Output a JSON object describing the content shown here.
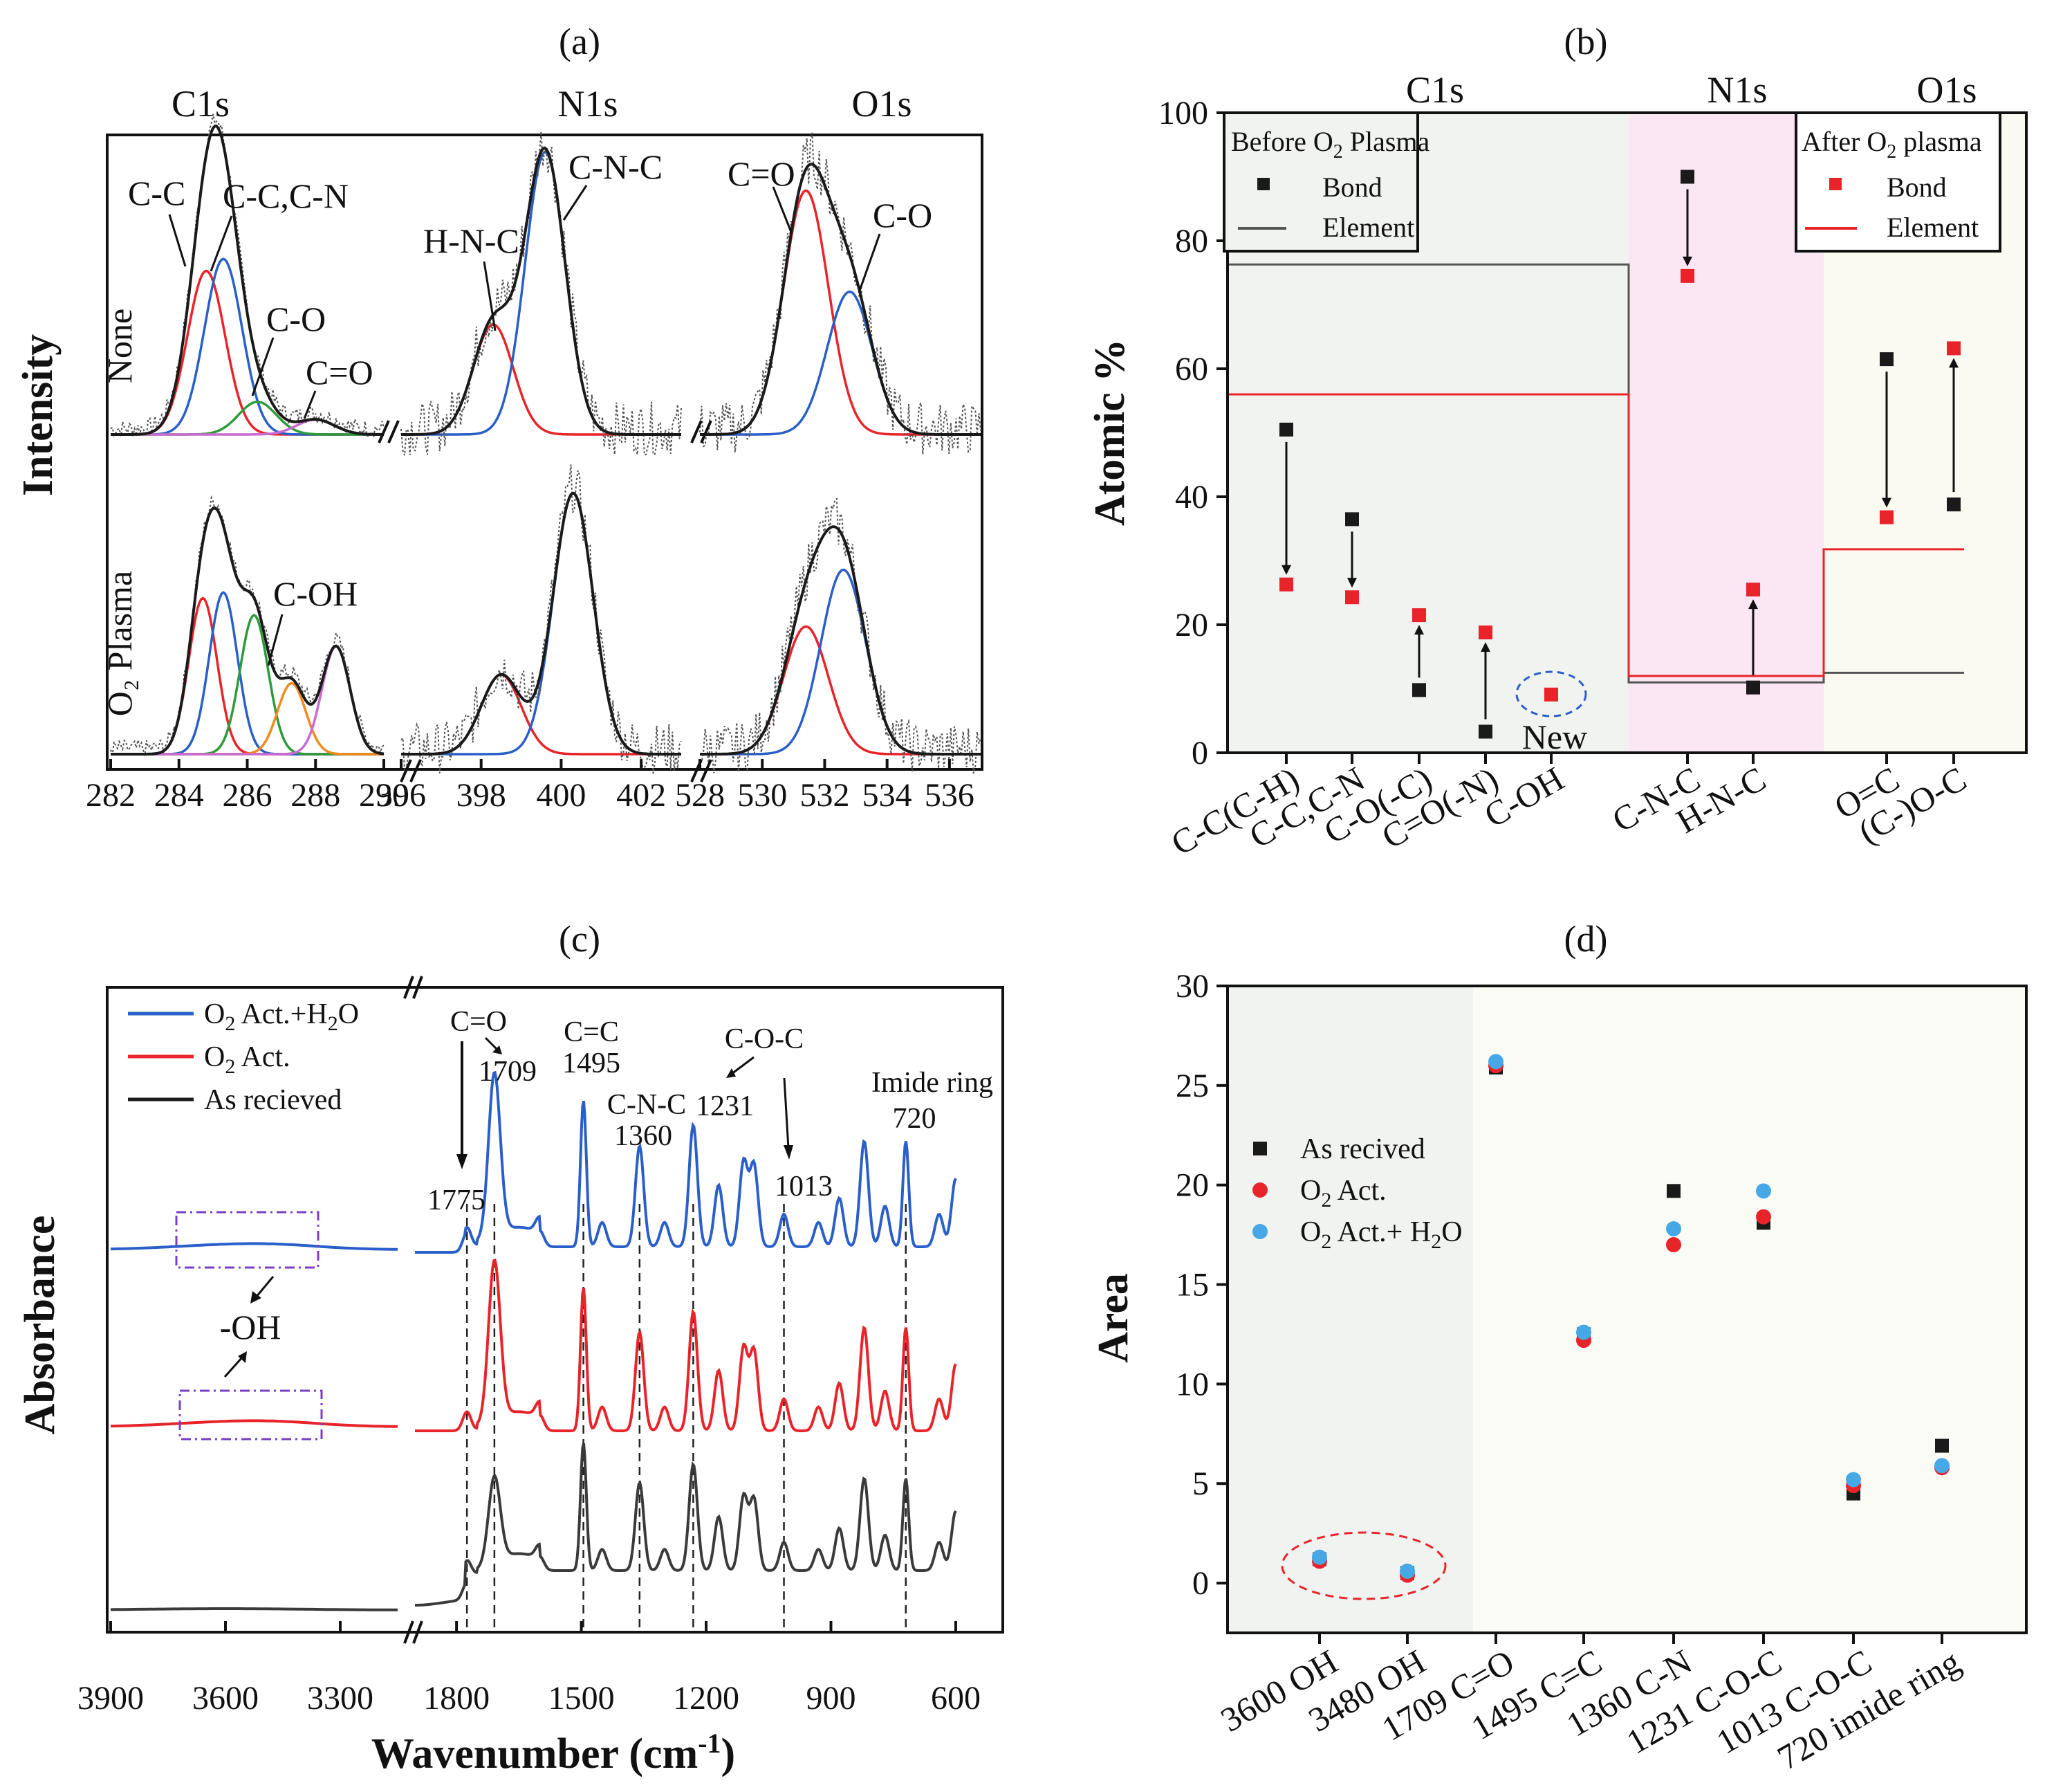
{
  "panels": {
    "a": "(a)",
    "b": "(b)",
    "c": "(c)",
    "d": "(d)"
  },
  "colors": {
    "black": "#1a1a1a",
    "red": "#e8242a",
    "blue": "#2a5fc9",
    "green": "#2e9b3a",
    "magenta": "#c96ad0",
    "orange": "#f08a1c",
    "lightblue": "#46a8e6",
    "shade_c1s": "#f1f3f0",
    "shade_n1s": "#fbe6f4",
    "shade_o1s": "#fbfaf0",
    "purple": "#7a3fc2"
  },
  "chart_data": [
    {
      "id": "a",
      "type": "line",
      "title": "(a)",
      "ylabel": "Intensity",
      "regions": [
        "C1s",
        "N1s",
        "O1s"
      ],
      "row_labels": [
        "None",
        "O₂ Plasma"
      ],
      "x_segments": [
        {
          "region": "C1s",
          "xlim": [
            282,
            290
          ],
          "ticks": [
            "282",
            "284",
            "286",
            "288",
            "290"
          ]
        },
        {
          "region": "N1s",
          "xlim": [
            396,
            403
          ],
          "ticks": [
            "396",
            "398",
            "400",
            "402"
          ]
        },
        {
          "region": "O1s",
          "xlim": [
            528,
            537
          ],
          "ticks": [
            "528",
            "530",
            "532",
            "534",
            "536"
          ]
        }
      ],
      "peaks_none": {
        "C1s": [
          {
            "name": "C-C",
            "center": 284.8,
            "height": 0.55,
            "color": "red"
          },
          {
            "name": "C-C,C-N",
            "center": 285.3,
            "height": 0.59,
            "color": "blue"
          },
          {
            "name": "C-O",
            "center": 286.3,
            "height": 0.11,
            "color": "green"
          },
          {
            "name": "C=O",
            "center": 288.0,
            "height": 0.05,
            "color": "magenta"
          }
        ],
        "N1s": [
          {
            "name": "H-N-C",
            "center": 398.3,
            "height": 0.37,
            "color": "red"
          },
          {
            "name": "C-N-C",
            "center": 399.6,
            "height": 0.95,
            "color": "blue"
          }
        ],
        "O1s": [
          {
            "name": "C=O",
            "center": 531.4,
            "height": 0.82,
            "color": "red"
          },
          {
            "name": "C-O",
            "center": 532.8,
            "height": 0.48,
            "color": "blue"
          }
        ]
      },
      "peaks_plasma": {
        "C1s": [
          {
            "name": "C-C",
            "center": 284.7,
            "height": 0.55,
            "color": "red"
          },
          {
            "name": "C-C,C-N",
            "center": 285.3,
            "height": 0.57,
            "color": "blue"
          },
          {
            "name": "C-O",
            "center": 286.2,
            "height": 0.49,
            "color": "green"
          },
          {
            "name": "C=O",
            "center": 287.3,
            "height": 0.25,
            "color": "orange"
          },
          {
            "name": "C-OH",
            "center": 288.6,
            "height": 0.38,
            "color": "magenta"
          }
        ],
        "N1s": [
          {
            "name": "H-N-C",
            "center": 398.5,
            "height": 0.28,
            "color": "red"
          },
          {
            "name": "C-N-C",
            "center": 400.3,
            "height": 0.92,
            "color": "blue"
          }
        ],
        "O1s": [
          {
            "name": "C=O",
            "center": 531.4,
            "height": 0.45,
            "color": "red"
          },
          {
            "name": "C-O",
            "center": 532.6,
            "height": 0.65,
            "color": "blue"
          }
        ]
      },
      "annotations": [
        "C-C",
        "C-C,C-N",
        "C-O",
        "C=O",
        "H-N-C",
        "C-N-C",
        "C=O",
        "C-O",
        "C-OH"
      ]
    },
    {
      "id": "b",
      "type": "scatter",
      "title": "(b)",
      "ylabel": "Atomic %",
      "ylim": [
        0,
        100
      ],
      "yticks": [
        "0",
        "20",
        "40",
        "60",
        "80",
        "100"
      ],
      "regions": [
        "C1s",
        "N1s",
        "O1s"
      ],
      "categories": [
        "C-C(C-H)",
        "C-C,C-N",
        "C-O(-C)",
        "C=O(-N)",
        "C-OH",
        "C-N-C",
        "H-N-C",
        "O=C",
        "(C-)O-C"
      ],
      "series": [
        {
          "name": "Before O₂ Plasma",
          "color": "black",
          "values": [
            50.5,
            36.5,
            9.8,
            3.3,
            null,
            90.0,
            10.2,
            61.5,
            38.8
          ]
        },
        {
          "name": "After O₂ plasma",
          "color": "red",
          "values": [
            26.3,
            24.3,
            21.5,
            18.8,
            9.1,
            74.5,
            25.5,
            36.8,
            63.2
          ]
        }
      ],
      "element_levels": [
        {
          "series": "Before O₂ Plasma",
          "color": "black",
          "C1s": 76.3,
          "N1s": 11.0,
          "O1s": 12.5
        },
        {
          "series": "After O₂ plasma",
          "color": "red",
          "C1s": 56.0,
          "N1s": 12.0,
          "O1s": 31.8
        }
      ],
      "legend_before": {
        "title_pre": "Before O",
        "title_sub": "2",
        "title_post": " Plasma",
        "bond": "Bond",
        "element": "Element"
      },
      "legend_after": {
        "title_pre": "After O",
        "title_sub": "2",
        "title_post": " plasma",
        "bond": "Bond",
        "element": "Element"
      },
      "new_label": "New"
    },
    {
      "id": "c",
      "type": "line",
      "title": "(c)",
      "xlabel_pre": "Wavenumber (cm",
      "xlabel_sup": "-1",
      "xlabel_post": ")",
      "ylabel": "Absorbance",
      "x_segments": [
        {
          "xlim": [
            3900,
            3150
          ],
          "ticks": [
            "3900",
            "3600",
            "3300"
          ]
        },
        {
          "xlim": [
            1900,
            570
          ],
          "ticks": [
            "1800",
            "1500",
            "1200",
            "900",
            "600"
          ]
        }
      ],
      "legend": [
        {
          "pre": "O",
          "sub": "2",
          "post": " Act.+H",
          "sub2": "2",
          "post2": "O",
          "color": "blue"
        },
        {
          "pre": "O",
          "sub": "2",
          "post": " Act.",
          "sub2": "",
          "post2": "",
          "color": "red"
        },
        {
          "pre": "As recieved",
          "sub": "",
          "post": "",
          "sub2": "",
          "post2": "",
          "color": "black"
        }
      ],
      "series": [
        {
          "name": "O₂ Act.+H₂O",
          "color": "blue"
        },
        {
          "name": "O₂ Act.",
          "color": "red"
        },
        {
          "name": "As recieved",
          "color": "black"
        }
      ],
      "peaks": [
        {
          "pos": 1775,
          "height": 0.12
        },
        {
          "pos": 1709,
          "height": 1.0
        },
        {
          "pos": 1600,
          "height": 0.1
        },
        {
          "pos": 1495,
          "height": 0.9
        },
        {
          "pos": 1450,
          "height": 0.15
        },
        {
          "pos": 1360,
          "height": 0.62
        },
        {
          "pos": 1300,
          "height": 0.15
        },
        {
          "pos": 1231,
          "height": 0.75
        },
        {
          "pos": 1170,
          "height": 0.38
        },
        {
          "pos": 1110,
          "height": 0.52
        },
        {
          "pos": 1085,
          "height": 0.5
        },
        {
          "pos": 1013,
          "height": 0.2
        },
        {
          "pos": 930,
          "height": 0.15
        },
        {
          "pos": 880,
          "height": 0.3
        },
        {
          "pos": 820,
          "height": 0.65
        },
        {
          "pos": 770,
          "height": 0.25
        },
        {
          "pos": 720,
          "height": 0.65
        },
        {
          "pos": 640,
          "height": 0.2
        },
        {
          "pos": 600,
          "height": 0.42
        }
      ],
      "marked_lines": [
        1775,
        1709,
        1495,
        1360,
        1231,
        1013,
        720
      ],
      "annotations": {
        "co_bond": "C=O",
        "p1709": "1709",
        "cc_bond": "C=C",
        "p1495": "1495",
        "cnc_bond": "C-N-C",
        "p1360": "1360",
        "coc_bond": "C-O-C",
        "p1231": "1231",
        "p1013": "1013",
        "p1775": "1775",
        "imide": "Imide ring",
        "p720": "720",
        "oh": "-OH"
      }
    },
    {
      "id": "d",
      "type": "scatter",
      "title": "(d)",
      "ylabel": "Area",
      "ylim": [
        -2.5,
        30
      ],
      "yticks": [
        "0",
        "5",
        "10",
        "15",
        "20",
        "25",
        "30"
      ],
      "categories": [
        "3600 OH",
        "3480 OH",
        "1709 C=O",
        "1495 C=C",
        "1360 C-N",
        "1231 C-O-C",
        "1013 C-O-C",
        "720 imide ring"
      ],
      "series": [
        {
          "name": "As recived",
          "color": "black",
          "marker": "square",
          "values": [
            1.2,
            0.5,
            25.9,
            12.5,
            19.7,
            18.1,
            4.5,
            6.9
          ]
        },
        {
          "name": "O₂ Act.",
          "color": "red",
          "marker": "circle",
          "values": [
            1.1,
            0.4,
            26.0,
            12.2,
            17.0,
            18.4,
            4.9,
            5.8
          ]
        },
        {
          "name": "O₂ Act.+ H₂O",
          "color": "lightblue",
          "marker": "circle",
          "values": [
            1.3,
            0.6,
            26.2,
            12.6,
            17.8,
            19.7,
            5.2,
            5.9
          ]
        }
      ],
      "legend": [
        {
          "pre": "As recived",
          "sub": "",
          "post": "",
          "sub2": "",
          "post2": ""
        },
        {
          "pre": "O",
          "sub": "2",
          "post": " Act.",
          "sub2": "",
          "post2": ""
        },
        {
          "pre": "O",
          "sub": "2",
          "post": " Act.+ H",
          "sub2": "2",
          "post2": "O"
        }
      ]
    }
  ]
}
